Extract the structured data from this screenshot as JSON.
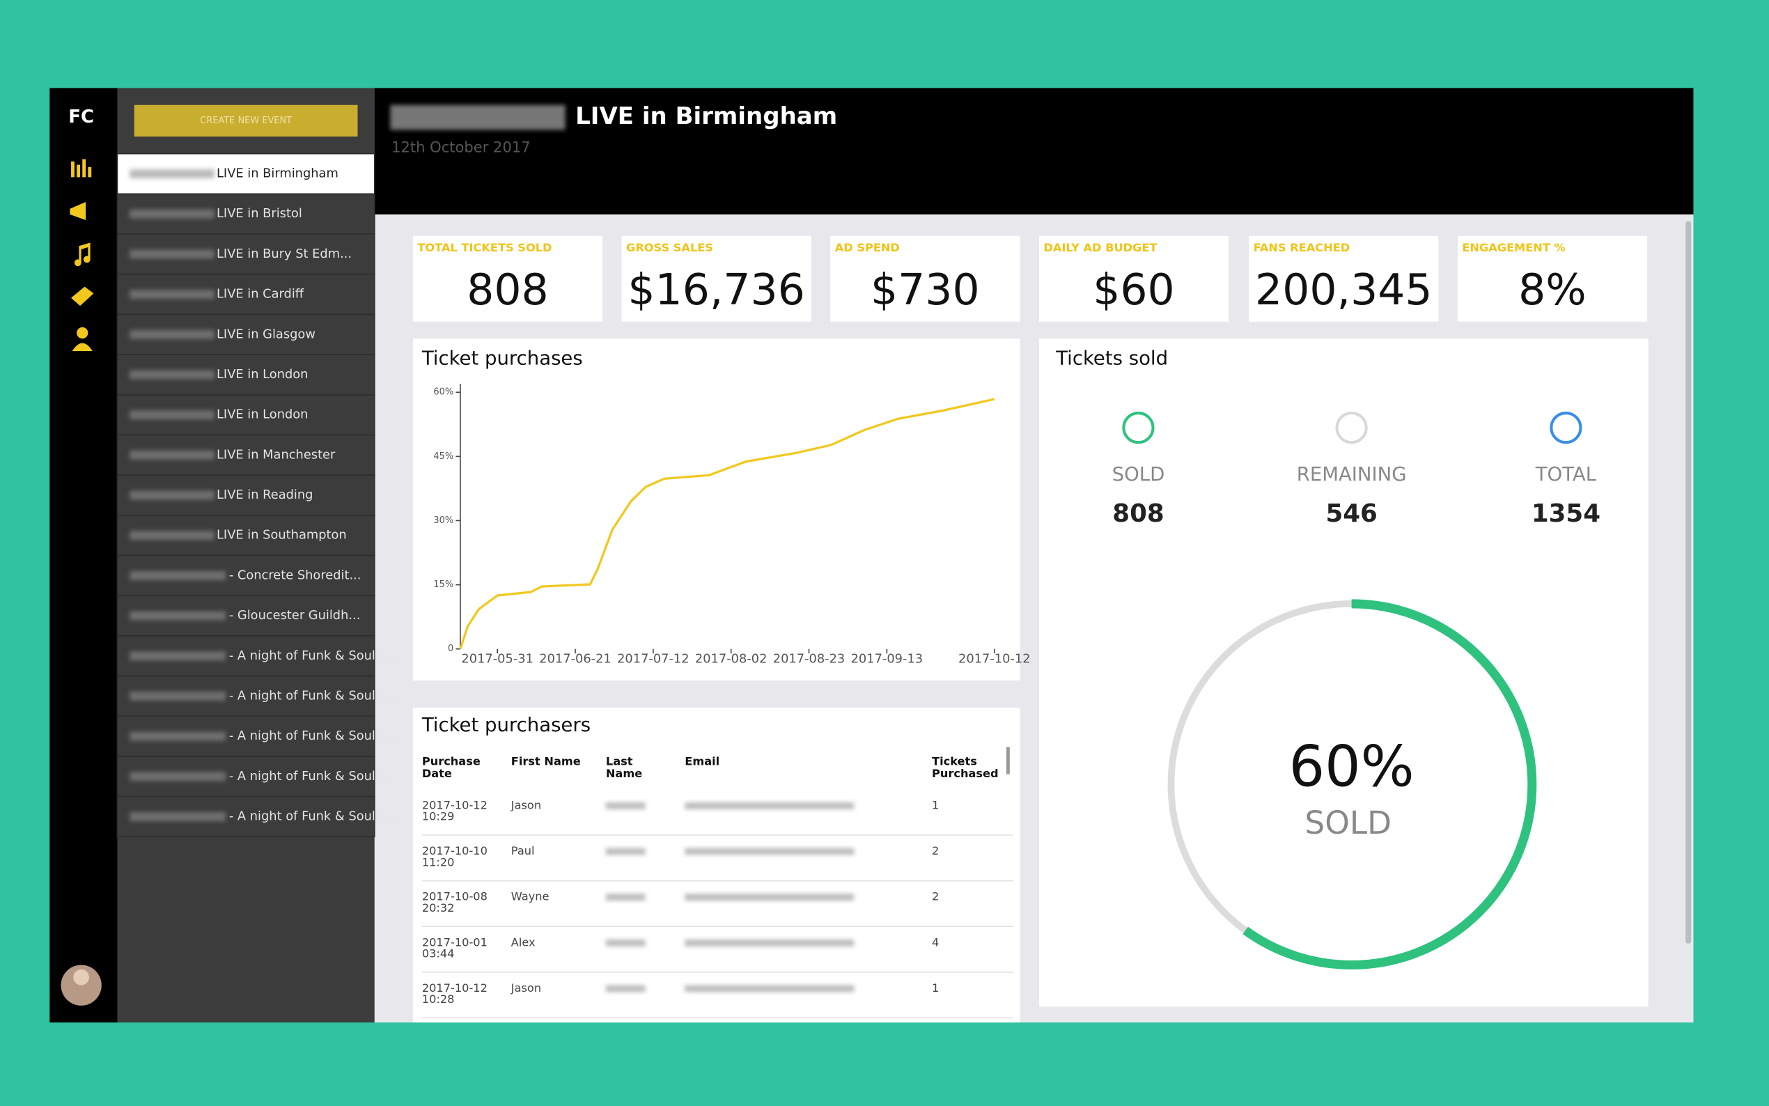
{
  "sidebar": {
    "logo": "FC",
    "button": "CREATE NEW EVENT",
    "events": [
      "LIVE in Birmingham",
      "LIVE in Bristol",
      "LIVE in Bury St Edm...",
      "LIVE in Cardiff",
      "LIVE in Glasgow",
      "LIVE in London",
      "LIVE in London",
      "LIVE in Manchester",
      "LIVE in Reading",
      "LIVE in Southampton",
      "- Concrete Shoredit...",
      "- Gloucester Guildh...",
      "- A night of Funk & Soul (...",
      "- A night of Funk & Soul (...",
      "- A night of Funk & Soul (...",
      "- A night of Funk & Soul (...",
      "- A night of Funk & Soul (..."
    ]
  },
  "header": {
    "title": "LIVE in Birmingham",
    "date": "12th October 2017"
  },
  "stats": [
    {
      "label": "TOTAL TICKETS SOLD",
      "value": "808"
    },
    {
      "label": "GROSS SALES",
      "value": "$16,736"
    },
    {
      "label": "AD SPEND",
      "value": "$730"
    },
    {
      "label": "DAILY AD BUDGET",
      "value": "$60"
    },
    {
      "label": "FANS REACHED",
      "value": "200,345"
    },
    {
      "label": "ENGAGEMENT %",
      "value": "8%"
    }
  ],
  "chart_data": {
    "type": "line",
    "title": "Ticket purchases",
    "x": [
      "2017-05-21",
      "2017-05-23",
      "2017-05-26",
      "2017-05-31",
      "2017-06-09",
      "2017-06-12",
      "2017-06-25",
      "2017-06-27",
      "2017-07-01",
      "2017-07-06",
      "2017-07-10",
      "2017-07-15",
      "2017-07-27",
      "2017-08-06",
      "2017-08-20",
      "2017-08-29",
      "2017-09-07",
      "2017-09-16",
      "2017-09-28",
      "2017-10-12"
    ],
    "values": [
      0,
      5.3,
      9.3,
      12.5,
      13.3,
      14.6,
      15.1,
      18.6,
      27.9,
      34.5,
      37.9,
      39.8,
      40.6,
      43.8,
      45.9,
      47.7,
      51.2,
      53.8,
      55.7,
      58.4
    ],
    "color": "#f2c81e",
    "xlim": [
      "2017-05-21",
      "2017-10-14"
    ],
    "xticks": [
      "2017-05-31",
      "2017-06-21",
      "2017-07-12",
      "2017-08-02",
      "2017-08-23",
      "2017-09-13",
      "2017-10-12"
    ],
    "ylim": [
      0,
      62
    ],
    "yticks": [
      0,
      {
        "value": 15,
        "label": "15%"
      },
      {
        "value": 30,
        "label": "30%"
      },
      {
        "value": 45,
        "label": "45%"
      },
      {
        "value": 60,
        "label": "60%"
      }
    ]
  },
  "tickets_sold": {
    "title": "Tickets sold",
    "items": [
      {
        "label": "SOLD",
        "value": "808",
        "color": "#2ec27e"
      },
      {
        "label": "REMAINING",
        "value": "546",
        "color": "#d8d8d8"
      },
      {
        "label": "TOTAL",
        "value": "1354",
        "color": "#3a8ee6"
      }
    ],
    "percent": 60,
    "percent_label": "60%",
    "percent_caption": "SOLD",
    "color": "#2ec27e"
  },
  "purchasers": {
    "title": "Ticket purchasers",
    "columns": [
      [
        "Purchase",
        "Date"
      ],
      [
        "First Name"
      ],
      [
        "Last",
        "Name"
      ],
      [
        "Email"
      ],
      [
        "Tickets",
        "Purchased"
      ]
    ],
    "rows": [
      {
        "date": "2017-10-12",
        "time": "10:29",
        "first": "Jason",
        "tickets": "1"
      },
      {
        "date": "2017-10-10",
        "time": "11:20",
        "first": "Paul",
        "tickets": "2"
      },
      {
        "date": "2017-10-08",
        "time": "20:32",
        "first": "Wayne",
        "tickets": "2"
      },
      {
        "date": "2017-10-01",
        "time": "03:44",
        "first": "Alex",
        "tickets": "4"
      },
      {
        "date": "2017-10-12",
        "time": "10:28",
        "first": "Jason",
        "tickets": "1"
      }
    ]
  }
}
